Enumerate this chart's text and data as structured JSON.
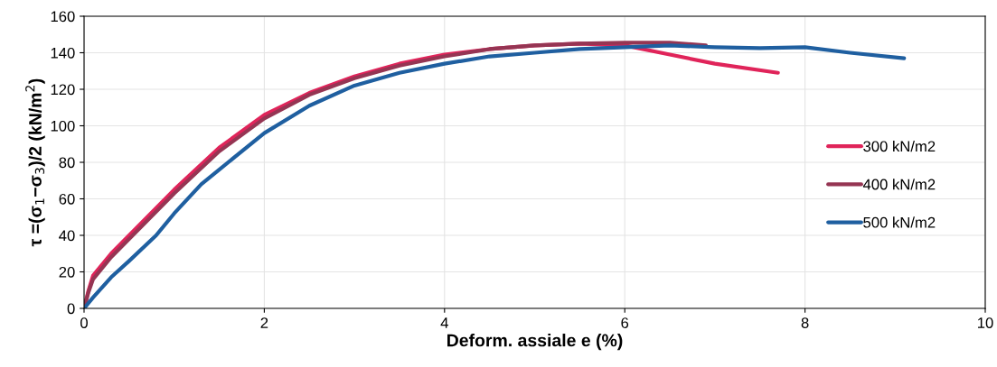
{
  "chart_data": {
    "type": "line",
    "xlabel": "Deform. assiale e (%)",
    "ylabel": "τ =(σ$_{1}$−σ$_{3}$)/2 (kN/m$^{2}$)",
    "xlim": [
      0,
      10
    ],
    "xticks": [
      0,
      2,
      4,
      6,
      8,
      10
    ],
    "ylim": [
      0,
      160
    ],
    "yticks": [
      0,
      20,
      40,
      60,
      80,
      100,
      120,
      140,
      160
    ],
    "grid": true,
    "legend": "right",
    "marker": "none",
    "line_style": "solid",
    "series": [
      {
        "name": "300 kN/m2",
        "color": "#e0245a",
        "x": [
          0,
          0.05,
          0.1,
          0.3,
          0.5,
          1,
          1.5,
          2,
          2.5,
          3,
          3.5,
          4,
          4.5,
          5,
          5.5,
          6,
          6.5,
          7,
          7.7
        ],
        "values": [
          0,
          10,
          18,
          30,
          40,
          65,
          88,
          106,
          118,
          127,
          134,
          139,
          142,
          144,
          145,
          144,
          139,
          134,
          129
        ]
      },
      {
        "name": "400 kN/m2",
        "color": "#953553",
        "x": [
          0,
          0.05,
          0.1,
          0.3,
          0.5,
          1,
          1.5,
          2,
          2.5,
          3,
          3.5,
          4,
          4.5,
          5,
          5.5,
          6,
          6.5,
          6.9
        ],
        "values": [
          0,
          9,
          16,
          28,
          38,
          63,
          86,
          104,
          117,
          126,
          133,
          138,
          142,
          144,
          145,
          145.5,
          145.5,
          144
        ]
      },
      {
        "name": "500 kN/m2",
        "color": "#1f5fa0",
        "x": [
          0,
          0.1,
          0.3,
          0.5,
          0.8,
          1,
          1.3,
          1.5,
          2,
          2.5,
          3,
          3.5,
          4,
          4.5,
          5,
          5.5,
          6,
          6.5,
          7,
          7.5,
          8,
          8.5,
          9.1
        ],
        "values": [
          0,
          6,
          17,
          26,
          40,
          52,
          68,
          76,
          96,
          111,
          122,
          129,
          134,
          138,
          140,
          142,
          143,
          144,
          143,
          142.5,
          143,
          140,
          137
        ]
      }
    ]
  }
}
